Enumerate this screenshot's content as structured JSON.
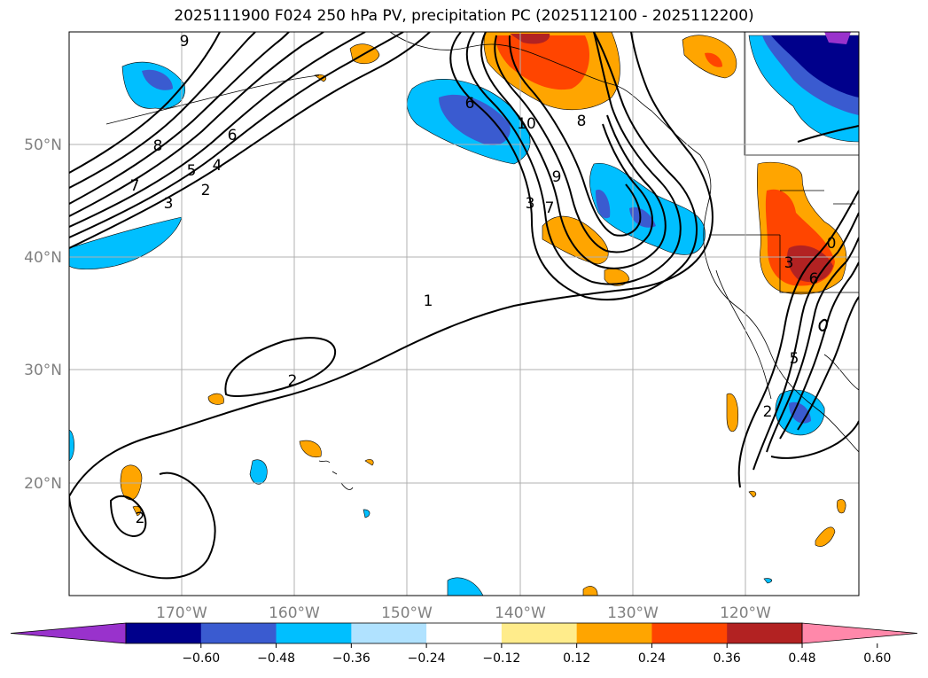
{
  "title": "2025111900 F024 250 hPa PV, precipitation PC (2025112100 - 2025112200)",
  "map": {
    "lon_ticks": [
      "170°W",
      "160°W",
      "150°W",
      "140°W",
      "130°W",
      "120°W"
    ],
    "lat_ticks": [
      "50°N",
      "40°N",
      "30°N",
      "20°N"
    ],
    "contour_labels": [
      "9",
      "8",
      "7",
      "6",
      "5",
      "4",
      "3",
      "2",
      "1",
      "2",
      "6",
      "10",
      "8",
      "9",
      "7",
      "3",
      "3",
      "6",
      "5",
      "2",
      "2",
      "0"
    ]
  },
  "colorbar": {
    "ticks": [
      "−0.60",
      "−0.48",
      "−0.36",
      "−0.24",
      "−0.12",
      "0.12",
      "0.24",
      "0.36",
      "0.48",
      "0.60"
    ],
    "colors": [
      "#9932cc",
      "#00008b",
      "#3a5bd0",
      "#00bfff",
      "#b0e2ff",
      "#ffffff",
      "#ffec8b",
      "#ffa500",
      "#ff4500",
      "#b22222",
      "#ff88aa"
    ]
  }
}
